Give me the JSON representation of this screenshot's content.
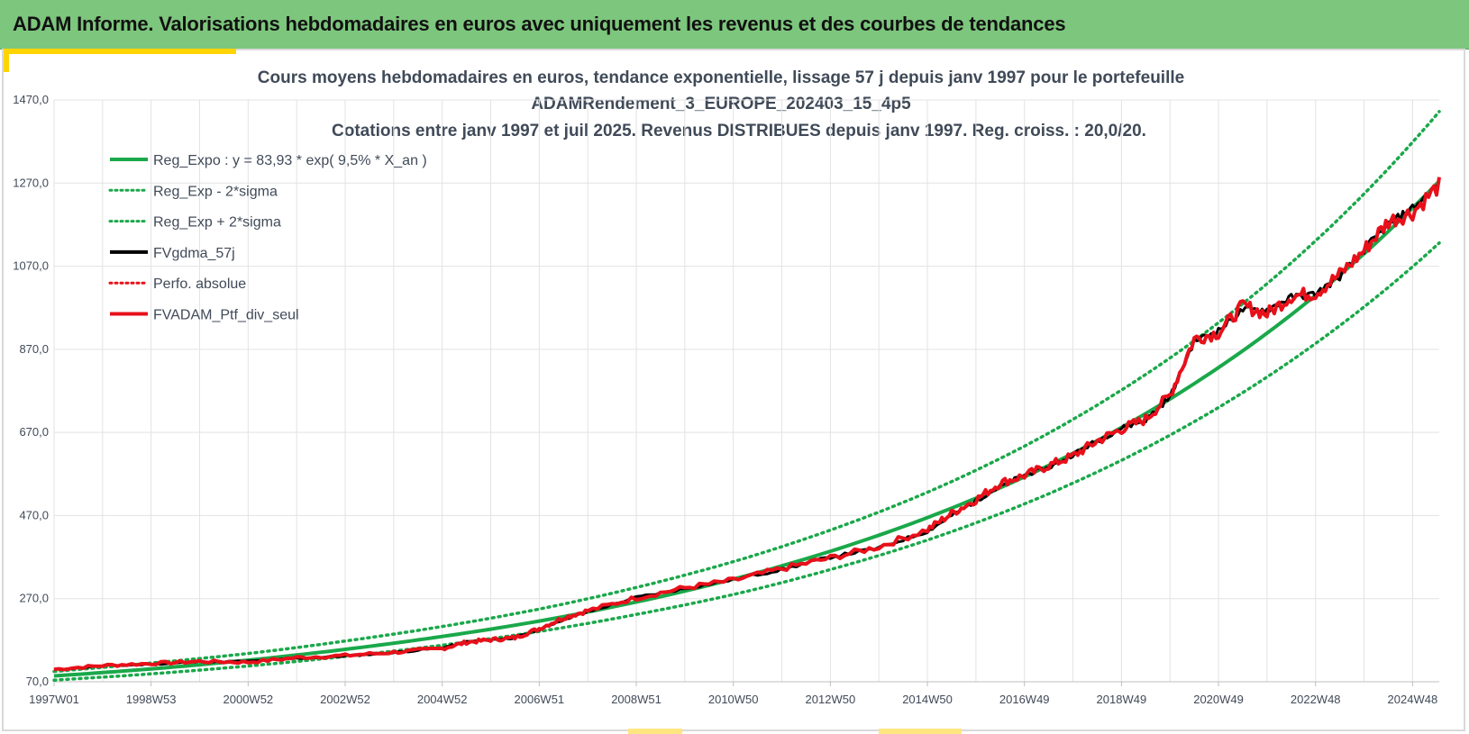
{
  "header": {
    "title": "ADAM Informe. Valorisations hebdomadaires en euros avec uniquement les revenus et des courbes de tendances"
  },
  "colors": {
    "header_bg": "#7dc67d",
    "accent": "#ffd400",
    "reg_green": "#1aa84a",
    "actual_red": "#e8101a",
    "black": "#000000",
    "text": "#404a58",
    "grid": "#e3e3e3"
  },
  "chart_data": {
    "type": "line",
    "title_lines": [
      "Cours moyens hebdomadaires  en euros, tendance exponentielle, lissage 57 j depuis janv 1997 pour le portefeuille",
      "ADAMRendement_3_EUROPE_202403_15_4p5",
      "Cotations  entre janv 1997 et juil 2025. Revenus DISTRIBUES depuis janv 1997. Reg. croiss. : 20,0/20."
    ],
    "x_tick_labels": [
      "1997W01",
      "1998W53",
      "2000W52",
      "2002W52",
      "2004W52",
      "2006W51",
      "2008W51",
      "2010W50",
      "2012W50",
      "2014W50",
      "2016W49",
      "2018W49",
      "2020W49",
      "2022W48",
      "2024W48"
    ],
    "x_tick_years": [
      1997.0,
      1999.0,
      2001.0,
      2003.0,
      2005.0,
      2007.0,
      2009.0,
      2011.0,
      2013.0,
      2015.0,
      2017.0,
      2019.0,
      2021.0,
      2023.0,
      2025.0
    ],
    "xlim": [
      1997.0,
      2025.55
    ],
    "y_tick_labels": [
      "70,0",
      "270,0",
      "470,0",
      "670,0",
      "870,0",
      "1070,0",
      "1270,0",
      "1470,0"
    ],
    "ylim": [
      70,
      1470
    ],
    "grid": true,
    "legend_position": "top-left",
    "legend": [
      {
        "label": "Reg_Expo : y = 83,93 * exp( 9,5% *  X_an )",
        "color": "#1aa84a",
        "style": "solid"
      },
      {
        "label": "Reg_Exp - 2*sigma",
        "color": "#1aa84a",
        "style": "dotted"
      },
      {
        "label": "Reg_Exp + 2*sigma",
        "color": "#1aa84a",
        "style": "dotted"
      },
      {
        "label": "FVgdma_57j",
        "color": "#000000",
        "style": "solid"
      },
      {
        "label": "Perfo. absolue",
        "color": "#e8101a",
        "style": "dotted"
      },
      {
        "label": "FVADAM_Ptf_div_seul",
        "color": "#e8101a",
        "style": "solid"
      }
    ],
    "series": [
      {
        "name": "Reg_Expo : y = 83,93 * exp( 9,5% *  X_an )",
        "x": [
          1997,
          1999,
          2001,
          2003,
          2005,
          2007,
          2009,
          2011,
          2013,
          2015,
          2017,
          2019,
          2021,
          2023,
          2025.55
        ],
        "values": [
          84,
          101,
          122,
          148,
          179,
          216,
          262,
          317,
          384,
          465,
          563,
          682,
          826,
          1000,
          1275
        ]
      },
      {
        "name": "Reg_Exp - 2*sigma",
        "x": [
          1997,
          1999,
          2001,
          2003,
          2005,
          2007,
          2009,
          2011,
          2013,
          2015,
          2017,
          2019,
          2021,
          2023,
          2025.55
        ],
        "values": [
          74,
          89,
          108,
          131,
          158,
          191,
          232,
          280,
          340,
          411,
          498,
          603,
          730,
          884,
          1126
        ]
      },
      {
        "name": "Reg_Exp + 2*sigma",
        "x": [
          1997,
          1999,
          2001,
          2003,
          2005,
          2007,
          2009,
          2011,
          2013,
          2015,
          2017,
          2019,
          2021,
          2023,
          2025.55
        ],
        "values": [
          95,
          115,
          138,
          168,
          203,
          245,
          297,
          359,
          435,
          526,
          637,
          772,
          934,
          1131,
          1442
        ]
      },
      {
        "name": "FVgdma_57j",
        "x": [
          1997,
          1998,
          1999,
          2000,
          2001,
          2002,
          2003,
          2004,
          2005,
          2005.5,
          2006,
          2006.5,
          2007,
          2007.5,
          2008,
          2009,
          2010,
          2011,
          2012,
          2013,
          2014,
          2015,
          2015.5,
          2016,
          2016.5,
          2017,
          2017.5,
          2018,
          2018.5,
          2019,
          2019.5,
          2020,
          2020.5,
          2021,
          2021.5,
          2022,
          2022.5,
          2023,
          2023.5,
          2024,
          2024.5,
          2025,
          2025.55
        ],
        "values": [
          99,
          108,
          112,
          118,
          119,
          126,
          132,
          140,
          152,
          166,
          171,
          176,
          196,
          220,
          238,
          273,
          294,
          316,
          340,
          370,
          392,
          432,
          470,
          505,
          540,
          568,
          585,
          617,
          650,
          680,
          700,
          755,
          890,
          915,
          965,
          965,
          995,
          1003,
          1045,
          1110,
          1170,
          1210,
          1268
        ]
      },
      {
        "name": "FVADAM_Ptf_div_seul",
        "x": [
          1997,
          1998,
          1999,
          2000,
          2001,
          2002,
          2003,
          2004,
          2005,
          2005.5,
          2006,
          2006.5,
          2007,
          2007.5,
          2008,
          2009,
          2010,
          2011,
          2012,
          2013,
          2014,
          2015,
          2015.5,
          2016,
          2016.5,
          2017,
          2017.5,
          2018,
          2018.5,
          2019,
          2019.5,
          2020,
          2020.5,
          2021,
          2021.5,
          2022,
          2022.5,
          2023,
          2023.5,
          2024,
          2024.5,
          2025,
          2025.55
        ],
        "values": [
          100,
          109,
          114,
          119,
          117,
          128,
          133,
          141,
          150,
          165,
          171,
          176,
          198,
          224,
          241,
          272,
          296,
          314,
          342,
          368,
          395,
          436,
          475,
          508,
          548,
          566,
          590,
          613,
          649,
          678,
          702,
          760,
          895,
          910,
          975,
          955,
          998,
          1005,
          1050,
          1108,
          1178,
          1200,
          1265
        ]
      }
    ]
  }
}
